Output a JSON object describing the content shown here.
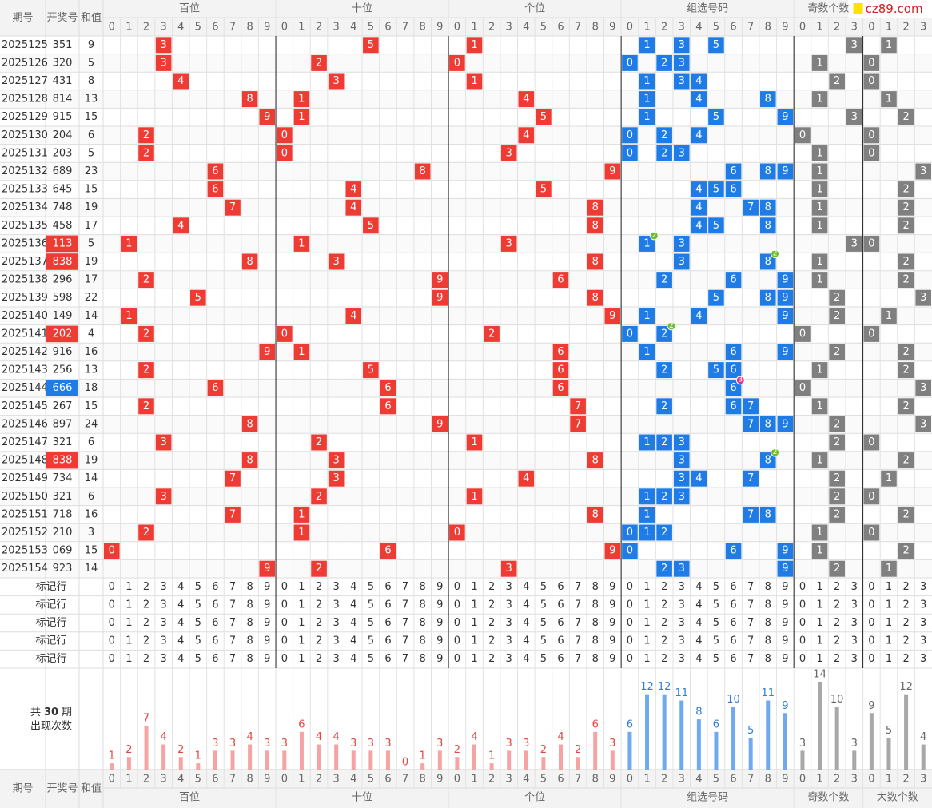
{
  "header": {
    "issue": "期号",
    "number": "开奖号",
    "sum": "和值"
  },
  "logo": "cz89.com",
  "groups": [
    {
      "name": "百位",
      "columns": [
        0,
        1,
        2,
        3,
        4,
        5,
        6,
        7,
        8,
        9
      ],
      "counts": [
        1,
        2,
        7,
        4,
        2,
        1,
        3,
        3,
        4,
        3
      ]
    },
    {
      "name": "十位",
      "columns": [
        0,
        1,
        2,
        3,
        4,
        5,
        6,
        7,
        8,
        9
      ],
      "counts": [
        3,
        6,
        4,
        4,
        3,
        3,
        3,
        0,
        1,
        3
      ]
    },
    {
      "name": "个位",
      "columns": [
        0,
        1,
        2,
        3,
        4,
        5,
        6,
        7,
        8,
        9
      ],
      "counts": [
        2,
        4,
        1,
        3,
        3,
        2,
        4,
        2,
        6,
        3
      ]
    },
    {
      "name": "组选号码",
      "columns": [
        0,
        1,
        2,
        3,
        4,
        5,
        6,
        7,
        8,
        9
      ],
      "counts": [
        6,
        12,
        12,
        11,
        8,
        6,
        10,
        5,
        11,
        9
      ]
    },
    {
      "name": "奇数个数",
      "columns": [
        0,
        1,
        2,
        3
      ],
      "counts": [
        3,
        14,
        10,
        3
      ]
    },
    {
      "name": "大数个数",
      "columns": [
        0,
        1,
        2,
        3
      ],
      "counts": [
        9,
        5,
        12,
        4
      ]
    }
  ],
  "rows": [
    {
      "issue": 2025125,
      "number": "351",
      "sum": 9,
      "hundreds": 3,
      "tens": 5,
      "units": 1,
      "group": [
        1,
        3,
        5
      ],
      "odd": 3,
      "big": 1
    },
    {
      "issue": 2025126,
      "number": "320",
      "sum": 5,
      "hundreds": 3,
      "tens": 2,
      "units": 0,
      "group": [
        0,
        2,
        3
      ],
      "odd": 1,
      "big": 0
    },
    {
      "issue": 2025127,
      "number": "431",
      "sum": 8,
      "hundreds": 4,
      "tens": 3,
      "units": 1,
      "group": [
        1,
        3,
        4
      ],
      "odd": 2,
      "big": 0
    },
    {
      "issue": 2025128,
      "number": "814",
      "sum": 13,
      "hundreds": 8,
      "tens": 1,
      "units": 4,
      "group": [
        1,
        4,
        8
      ],
      "odd": 1,
      "big": 1
    },
    {
      "issue": 2025129,
      "number": "915",
      "sum": 15,
      "hundreds": 9,
      "tens": 1,
      "units": 5,
      "group": [
        1,
        5,
        9
      ],
      "odd": 3,
      "big": 2
    },
    {
      "issue": 2025130,
      "number": "204",
      "sum": 6,
      "hundreds": 2,
      "tens": 0,
      "units": 4,
      "group": [
        0,
        2,
        4
      ],
      "odd": 0,
      "big": 0
    },
    {
      "issue": 2025131,
      "number": "203",
      "sum": 5,
      "hundreds": 2,
      "tens": 0,
      "units": 3,
      "group": [
        0,
        2,
        3
      ],
      "odd": 1,
      "big": 0
    },
    {
      "issue": 2025132,
      "number": "689",
      "sum": 23,
      "hundreds": 6,
      "tens": 8,
      "units": 9,
      "group": [
        6,
        8,
        9
      ],
      "odd": 1,
      "big": 3
    },
    {
      "issue": 2025133,
      "number": "645",
      "sum": 15,
      "hundreds": 6,
      "tens": 4,
      "units": 5,
      "group": [
        4,
        5,
        6
      ],
      "odd": 1,
      "big": 2
    },
    {
      "issue": 2025134,
      "number": "748",
      "sum": 19,
      "hundreds": 7,
      "tens": 4,
      "units": 8,
      "group": [
        4,
        7,
        8
      ],
      "odd": 1,
      "big": 2
    },
    {
      "issue": 2025135,
      "number": "458",
      "sum": 17,
      "hundreds": 4,
      "tens": 5,
      "units": 8,
      "group": [
        4,
        5,
        8
      ],
      "odd": 1,
      "big": 2
    },
    {
      "issue": 2025136,
      "number": "113",
      "sum": 5,
      "hundreds": 1,
      "tens": 1,
      "units": 3,
      "group": [
        1,
        3
      ],
      "odd": 3,
      "big": 0,
      "badge": 2
    },
    {
      "issue": 2025137,
      "number": "838",
      "sum": 19,
      "hundreds": 8,
      "tens": 3,
      "units": 8,
      "group": [
        3,
        8
      ],
      "odd": 1,
      "big": 2,
      "badge": 2
    },
    {
      "issue": 2025138,
      "number": "296",
      "sum": 17,
      "hundreds": 2,
      "tens": 9,
      "units": 6,
      "group": [
        2,
        6,
        9
      ],
      "odd": 1,
      "big": 2
    },
    {
      "issue": 2025139,
      "number": "598",
      "sum": 22,
      "hundreds": 5,
      "tens": 9,
      "units": 8,
      "group": [
        5,
        8,
        9
      ],
      "odd": 2,
      "big": 3
    },
    {
      "issue": 2025140,
      "number": "149",
      "sum": 14,
      "hundreds": 1,
      "tens": 4,
      "units": 9,
      "group": [
        1,
        4,
        9
      ],
      "odd": 2,
      "big": 1
    },
    {
      "issue": 2025141,
      "number": "202",
      "sum": 4,
      "hundreds": 2,
      "tens": 0,
      "units": 2,
      "group": [
        0,
        2
      ],
      "odd": 0,
      "big": 0,
      "badge": 2
    },
    {
      "issue": 2025142,
      "number": "916",
      "sum": 16,
      "hundreds": 9,
      "tens": 1,
      "units": 6,
      "group": [
        1,
        6,
        9
      ],
      "odd": 2,
      "big": 2
    },
    {
      "issue": 2025143,
      "number": "256",
      "sum": 13,
      "hundreds": 2,
      "tens": 5,
      "units": 6,
      "group": [
        2,
        5,
        6
      ],
      "odd": 1,
      "big": 2
    },
    {
      "issue": 2025144,
      "number": "666",
      "sum": 18,
      "hundreds": 6,
      "tens": 6,
      "units": 6,
      "group": [
        6
      ],
      "odd": 0,
      "big": 3,
      "badge": 3
    },
    {
      "issue": 2025145,
      "number": "267",
      "sum": 15,
      "hundreds": 2,
      "tens": 6,
      "units": 7,
      "group": [
        2,
        6,
        7
      ],
      "odd": 1,
      "big": 2
    },
    {
      "issue": 2025146,
      "number": "897",
      "sum": 24,
      "hundreds": 8,
      "tens": 9,
      "units": 7,
      "group": [
        7,
        8,
        9
      ],
      "odd": 2,
      "big": 3
    },
    {
      "issue": 2025147,
      "number": "321",
      "sum": 6,
      "hundreds": 3,
      "tens": 2,
      "units": 1,
      "group": [
        1,
        2,
        3
      ],
      "odd": 2,
      "big": 0
    },
    {
      "issue": 2025148,
      "number": "838",
      "sum": 19,
      "hundreds": 8,
      "tens": 3,
      "units": 8,
      "group": [
        3,
        8
      ],
      "odd": 1,
      "big": 2,
      "badge": 2
    },
    {
      "issue": 2025149,
      "number": "734",
      "sum": 14,
      "hundreds": 7,
      "tens": 3,
      "units": 4,
      "group": [
        3,
        4,
        7
      ],
      "odd": 2,
      "big": 1
    },
    {
      "issue": 2025150,
      "number": "321",
      "sum": 6,
      "hundreds": 3,
      "tens": 2,
      "units": 1,
      "group": [
        1,
        2,
        3
      ],
      "odd": 2,
      "big": 0
    },
    {
      "issue": 2025151,
      "number": "718",
      "sum": 16,
      "hundreds": 7,
      "tens": 1,
      "units": 8,
      "group": [
        1,
        7,
        8
      ],
      "odd": 2,
      "big": 2
    },
    {
      "issue": 2025152,
      "number": "210",
      "sum": 3,
      "hundreds": 2,
      "tens": 1,
      "units": 0,
      "group": [
        0,
        1,
        2
      ],
      "odd": 1,
      "big": 0
    },
    {
      "issue": 2025153,
      "number": "069",
      "sum": 15,
      "hundreds": 0,
      "tens": 6,
      "units": 9,
      "group": [
        0,
        6,
        9
      ],
      "odd": 1,
      "big": 2
    },
    {
      "issue": 2025154,
      "number": "923",
      "sum": 14,
      "hundreds": 9,
      "tens": 2,
      "units": 3,
      "group": [
        2,
        3,
        9
      ],
      "odd": 2,
      "big": 1
    }
  ],
  "marker_rows": [
    "标记行",
    "标记行",
    "标记行",
    "标记行",
    "标记行"
  ],
  "stats_label": {
    "prefix": "共",
    "periods": 30,
    "suffix": "期",
    "caption": "出现次数"
  }
}
